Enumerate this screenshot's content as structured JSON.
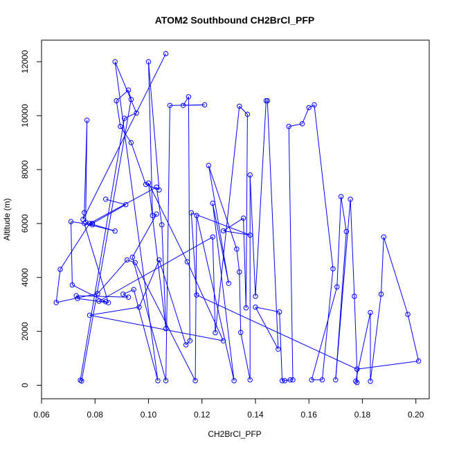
{
  "chart_data": {
    "type": "line",
    "title": "ATOM2 Southbound CH2BrCl_PFP",
    "xlabel": "CH2BrCl_PFP",
    "ylabel": "Altitude (m)",
    "xlim": [
      0.06,
      0.205
    ],
    "ylim": [
      -500,
      12800
    ],
    "x_ticks": [
      0.06,
      0.08,
      0.1,
      0.12,
      0.14,
      0.16,
      0.18,
      0.2
    ],
    "x_tick_labels": [
      "0.06",
      "0.08",
      "0.10",
      "0.12",
      "0.14",
      "0.16",
      "0.18",
      "0.20"
    ],
    "y_ticks": [
      0,
      2000,
      4000,
      6000,
      8000,
      10000,
      12000
    ],
    "y_tick_labels": [
      "0",
      "2000",
      "4000",
      "6000",
      "8000",
      "10000",
      "12000"
    ],
    "grid": false,
    "marker": "open-circle",
    "series": [
      {
        "color": "#0000ff",
        "points": [
          [
            0.1065,
            12300
          ],
          [
            0.0755,
            6150
          ],
          [
            0.076,
            6400
          ],
          [
            0.077,
            9830
          ],
          [
            0.0765,
            6050
          ],
          [
            0.0875,
            5720
          ],
          [
            0.076,
            6000
          ],
          [
            0.085,
            3060
          ],
          [
            0.0735,
            3220
          ],
          [
            0.073,
            3320
          ],
          [
            0.0925,
            3270
          ],
          [
            0.0905,
            3380
          ],
          [
            0.0945,
            3550
          ],
          [
            0.1035,
            170
          ],
          [
            0.0875,
            12000
          ],
          [
            0.0955,
            10100
          ],
          [
            0.091,
            9900
          ],
          [
            0.0745,
            190
          ],
          [
            0.075,
            160
          ],
          [
            0.0935,
            10600
          ],
          [
            0.0925,
            10950
          ],
          [
            0.088,
            10550
          ],
          [
            0.0895,
            9600
          ],
          [
            0.0935,
            9000
          ],
          [
            0.099,
            7450
          ],
          [
            0.104,
            7250
          ],
          [
            0.1,
            12000
          ],
          [
            0.1015,
            6300
          ],
          [
            0.103,
            6350
          ],
          [
            0.094,
            4750
          ],
          [
            0.1065,
            170
          ],
          [
            0.108,
            10380
          ],
          [
            0.121,
            10400
          ],
          [
            0.113,
            10380
          ],
          [
            0.115,
            10700
          ],
          [
            0.1155,
            1650
          ],
          [
            0.114,
            1500
          ],
          [
            0.104,
            4650
          ],
          [
            0.0965,
            2900
          ],
          [
            0.078,
            2600
          ],
          [
            0.128,
            1650
          ],
          [
            0.1145,
            4580
          ],
          [
            0.1,
            7500
          ],
          [
            0.1065,
            2100
          ],
          [
            0.105,
            5950
          ],
          [
            0.103,
            7350
          ],
          [
            0.078,
            6000
          ],
          [
            0.067,
            4300
          ],
          [
            0.0655,
            3070
          ],
          [
            0.081,
            3400
          ],
          [
            0.092,
            4650
          ],
          [
            0.095,
            4550
          ],
          [
            0.1175,
            170
          ],
          [
            0.118,
            6300
          ],
          [
            0.132,
            170
          ],
          [
            0.124,
            6750
          ],
          [
            0.13,
            3780
          ],
          [
            0.1225,
            8150
          ],
          [
            0.133,
            5050
          ],
          [
            0.134,
            4200
          ],
          [
            0.1345,
            1960
          ],
          [
            0.138,
            200
          ],
          [
            0.138,
            7800
          ],
          [
            0.14,
            3300
          ],
          [
            0.144,
            10550
          ],
          [
            0.1445,
            10550
          ],
          [
            0.1485,
            1340
          ],
          [
            0.14,
            2900
          ],
          [
            0.149,
            2720
          ],
          [
            0.15,
            170
          ],
          [
            0.151,
            170
          ],
          [
            0.153,
            200
          ],
          [
            0.154,
            200
          ],
          [
            0.1525,
            9600
          ],
          [
            0.1575,
            9700
          ],
          [
            0.16,
            10300
          ],
          [
            0.162,
            10400
          ],
          [
            0.169,
            4320
          ],
          [
            0.165,
            200
          ],
          [
            0.161,
            200
          ],
          [
            0.1705,
            3650
          ],
          [
            0.172,
            7000
          ],
          [
            0.174,
            5700
          ],
          [
            0.17,
            200
          ],
          [
            0.1755,
            6900
          ],
          [
            0.177,
            3300
          ],
          [
            0.178,
            600
          ],
          [
            0.178,
            100
          ],
          [
            0.1775,
            150
          ],
          [
            0.183,
            2700
          ],
          [
            0.183,
            150
          ],
          [
            0.187,
            3380
          ],
          [
            0.188,
            5500
          ],
          [
            0.197,
            2630
          ],
          [
            0.201,
            900
          ],
          [
            0.178,
            600
          ],
          [
            0.118,
            3350
          ],
          [
            0.116,
            6400
          ],
          [
            0.138,
            5570
          ],
          [
            0.128,
            5730
          ],
          [
            0.1355,
            6200
          ],
          [
            0.1365,
            2870
          ],
          [
            0.137,
            10050
          ],
          [
            0.134,
            10350
          ],
          [
            0.125,
            1950
          ],
          [
            0.124,
            5500
          ],
          [
            0.0815,
            3120
          ],
          [
            0.084,
            3100
          ],
          [
            0.0715,
            3720
          ],
          [
            0.071,
            6070
          ],
          [
            0.079,
            5950
          ],
          [
            0.079,
            6000
          ],
          [
            0.0915,
            6700
          ],
          [
            0.084,
            6900
          ]
        ]
      }
    ]
  }
}
